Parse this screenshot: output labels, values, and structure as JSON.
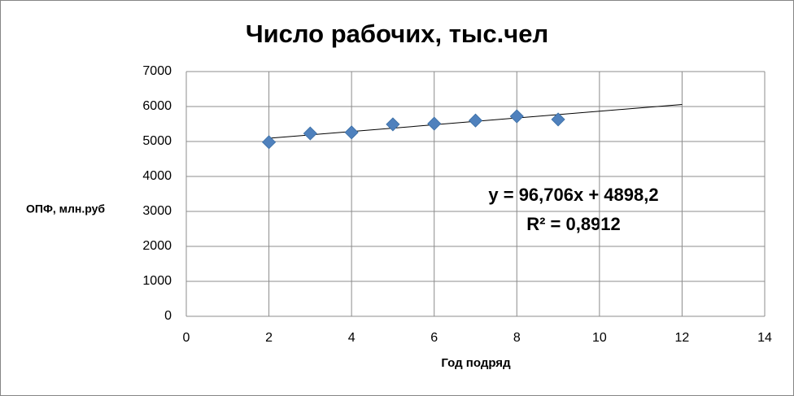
{
  "chart_data": {
    "type": "scatter",
    "title": "Число рабочих, тыс.чел",
    "x_label": "Год подряд",
    "y_label": "ОПФ, млн.руб",
    "series": [
      {
        "name": "Число рабочих",
        "color": "#4f81bd",
        "x": [
          2,
          3,
          4,
          5,
          6,
          7,
          8,
          9
        ],
        "values": [
          4980,
          5230,
          5260,
          5490,
          5510,
          5600,
          5720,
          5630
        ]
      }
    ],
    "trendline": {
      "slope": 96.706,
      "intercept": 4898.2,
      "x_range": [
        2,
        12
      ],
      "label": "y = 96,706x + 4898,2",
      "r2_label": "R² = 0,8912"
    },
    "xlim": [
      0,
      14
    ],
    "xticks": [
      0,
      2,
      4,
      6,
      8,
      10,
      12,
      14
    ],
    "ylim": [
      0,
      7000
    ],
    "yticks": [
      0,
      1000,
      2000,
      3000,
      4000,
      5000,
      6000,
      7000
    ],
    "grid": true
  }
}
